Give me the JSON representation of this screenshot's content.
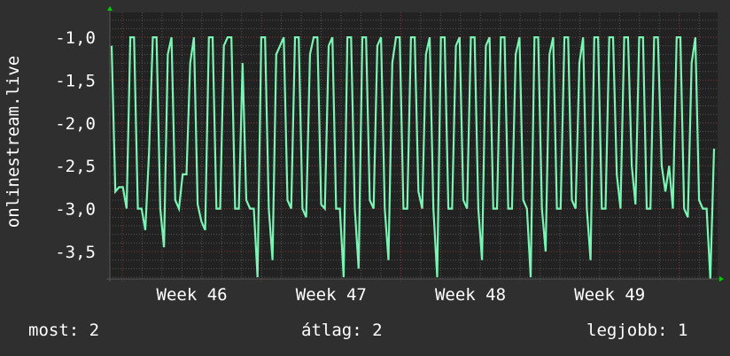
{
  "chart_data": {
    "type": "line",
    "ylabel": "onlinestream.live",
    "ylim": [
      -3.82,
      -0.71
    ],
    "y_ticks": [
      "-1,0",
      "-1,5",
      "-2,0",
      "-2,5",
      "-3,0",
      "-3,5"
    ],
    "y_tick_values": [
      -1.0,
      -1.5,
      -2.0,
      -2.5,
      -3.0,
      -3.5
    ],
    "x_tick_labels": [
      "Week 46",
      "Week 47",
      "Week 48",
      "Week 49"
    ],
    "grid": true,
    "line_color": "#7af5b4",
    "values": [
      -1.1,
      -2.8,
      -2.75,
      -2.75,
      -3.0,
      -1.0,
      -1.0,
      -3.0,
      -3.0,
      -3.25,
      -2.35,
      -1.0,
      -1.0,
      -3.0,
      -3.45,
      -1.2,
      -1.0,
      -2.9,
      -3.0,
      -2.6,
      -2.6,
      -1.3,
      -1.0,
      -2.95,
      -3.15,
      -3.25,
      -1.0,
      -1.0,
      -3.0,
      -3.0,
      -1.1,
      -1.0,
      -1.0,
      -3.0,
      -3.0,
      -1.3,
      -2.9,
      -3.0,
      -3.0,
      -3.8,
      -1.0,
      -1.0,
      -3.0,
      -3.6,
      -1.2,
      -1.1,
      -1.0,
      -2.9,
      -3.0,
      -1.0,
      -1.0,
      -3.0,
      -3.1,
      -1.2,
      -1.0,
      -1.0,
      -2.95,
      -3.0,
      -1.1,
      -1.0,
      -3.0,
      -3.0,
      -3.8,
      -1.0,
      -1.0,
      -3.0,
      -3.7,
      -1.0,
      -1.0,
      -2.9,
      -3.0,
      -1.1,
      -1.0,
      -3.0,
      -3.6,
      -1.3,
      -1.0,
      -1.0,
      -3.0,
      -3.0,
      -1.0,
      -1.0,
      -2.8,
      -3.0,
      -1.2,
      -1.0,
      -3.0,
      -3.8,
      -1.0,
      -1.0,
      -3.0,
      -3.0,
      -1.1,
      -1.0,
      -2.9,
      -3.0,
      -1.0,
      -1.0,
      -3.0,
      -3.6,
      -1.1,
      -1.0,
      -3.0,
      -3.0,
      -1.0,
      -1.0,
      -3.0,
      -3.0,
      -1.2,
      -1.0,
      -2.9,
      -3.0,
      -3.8,
      -1.0,
      -1.0,
      -3.0,
      -3.5,
      -1.2,
      -1.0,
      -3.0,
      -3.0,
      -1.0,
      -1.0,
      -2.9,
      -3.0,
      -1.3,
      -1.0,
      -3.0,
      -3.6,
      -1.0,
      -1.0,
      -3.0,
      -3.0,
      -1.0,
      -1.0,
      -2.6,
      -3.0,
      -1.0,
      -1.0,
      -2.5,
      -2.95,
      -1.0,
      -1.0,
      -3.0,
      -3.0,
      -1.0,
      -1.0,
      -2.5,
      -2.8,
      -2.5,
      -3.0,
      -1.0,
      -1.0,
      -3.0,
      -3.1,
      -1.3,
      -1.0,
      -2.9,
      -3.0,
      -3.0,
      -3.82,
      -2.3
    ]
  },
  "legend": {
    "current": "most: 2",
    "average": "átlag: 2",
    "max": "legjobb: 1"
  }
}
